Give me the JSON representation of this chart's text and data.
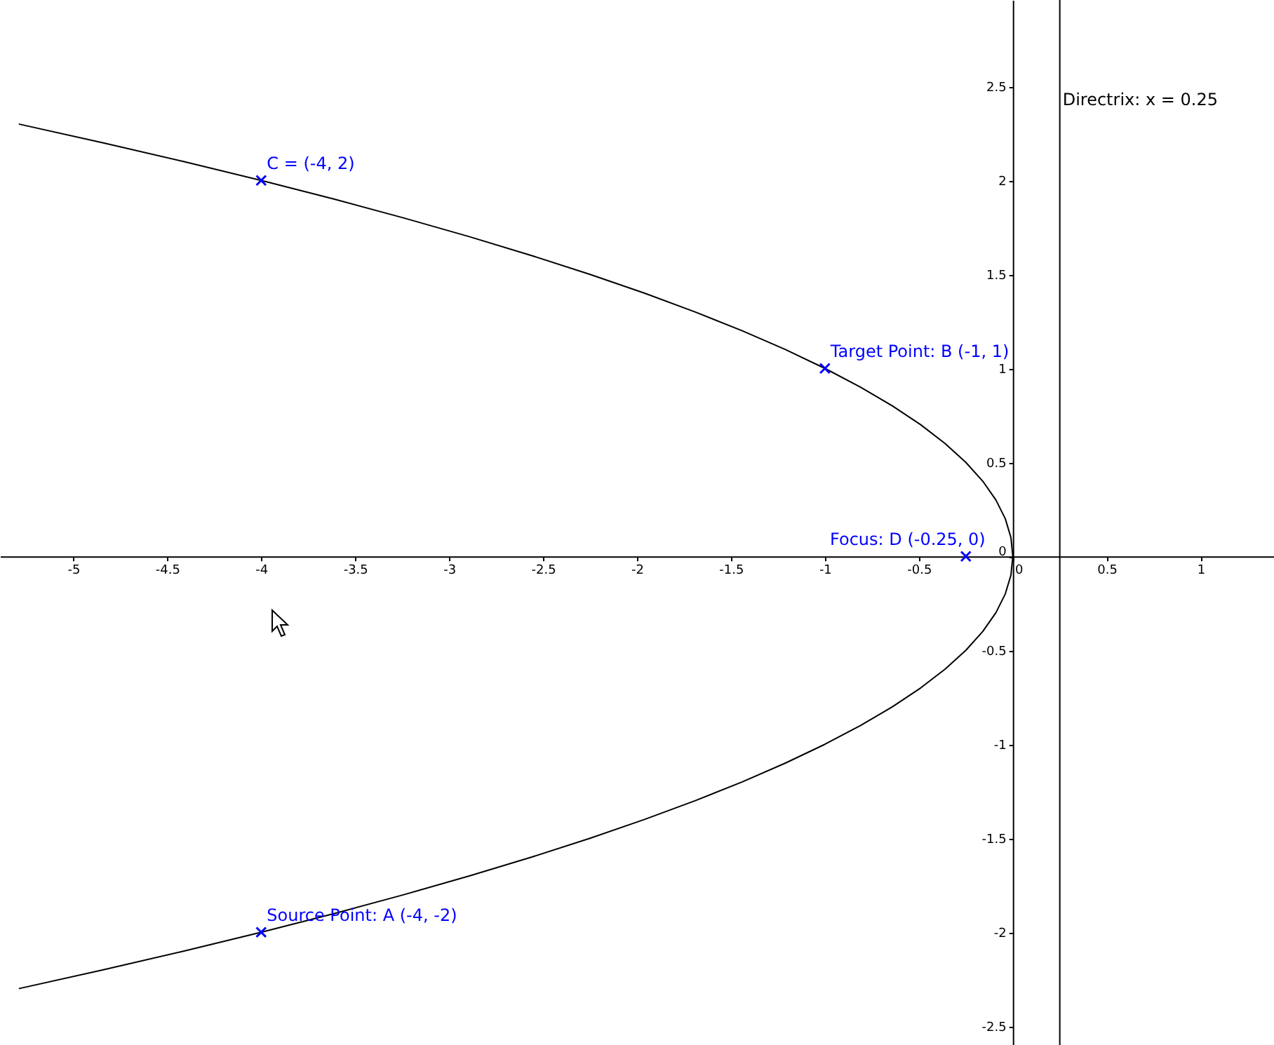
{
  "chart_data": {
    "type": "line",
    "xlim": [
      -5.39,
      1.39
    ],
    "ylim": [
      -2.6,
      2.96
    ],
    "xticks": [
      -5,
      -4.5,
      -4,
      -3.5,
      -3,
      -2.5,
      -2,
      -1.5,
      -1,
      -0.5,
      0,
      0.5,
      1
    ],
    "yticks": [
      -2.5,
      -2,
      -1.5,
      -1,
      -0.5,
      0,
      0.5,
      1,
      1.5,
      2,
      2.5
    ],
    "series": [
      {
        "color": "#000000",
        "marker": "none",
        "x": [
          -5.29,
          -4.84,
          -4.41,
          -4,
          -3.61,
          -3.24,
          -2.89,
          -2.56,
          -2.25,
          -1.96,
          -1.69,
          -1.44,
          -1.21,
          -1,
          -0.81,
          -0.64,
          -0.49,
          -0.36,
          -0.25,
          -0.16,
          -0.09,
          -0.04,
          -0.01,
          0,
          -0.01,
          -0.04,
          -0.09,
          -0.16,
          -0.25,
          -0.36,
          -0.49,
          -0.64,
          -0.81,
          -1,
          -1.21,
          -1.44,
          -1.69,
          -1.96,
          -2.25,
          -2.56,
          -2.89,
          -3.24,
          -3.61,
          -4,
          -4.41,
          -4.84,
          -5.29
        ],
        "values": [
          -2.3,
          -2.2,
          -2.1,
          -2,
          -1.9,
          -1.8,
          -1.7,
          -1.6,
          -1.5,
          -1.4,
          -1.3,
          -1.2,
          -1.1,
          -1,
          -0.9,
          -0.8,
          -0.7,
          -0.6,
          -0.5,
          -0.4,
          -0.3,
          -0.2,
          -0.1,
          0,
          0.1,
          0.2,
          0.3,
          0.4,
          0.5,
          0.6,
          0.7,
          0.8,
          0.9,
          1,
          1.1,
          1.2,
          1.3,
          1.4,
          1.5,
          1.6,
          1.7,
          1.8,
          1.9,
          2,
          2.1,
          2.2,
          2.3
        ]
      },
      {
        "type": "scatter",
        "color": "#0000ff",
        "marker": "cross",
        "x": [
          -4,
          -1,
          -4,
          -0.25
        ],
        "values": [
          -2,
          1,
          2,
          0
        ]
      }
    ],
    "annotations": [
      {
        "text": "Source Point: A (-4, -2)",
        "x": -4,
        "y": -2
      },
      {
        "text": "Target Point: B (-1, 1)",
        "x": -1,
        "y": 1
      },
      {
        "text": "C = (-4, 2)",
        "x": -4,
        "y": 2
      },
      {
        "text": "Focus: D (-0.25, 0)",
        "x": -0.25,
        "y": 0
      }
    ],
    "ref_lines": [
      {
        "axis": "x",
        "value": 0.25,
        "label": "Directrix: x = 0.25",
        "color": "#000000"
      }
    ]
  }
}
